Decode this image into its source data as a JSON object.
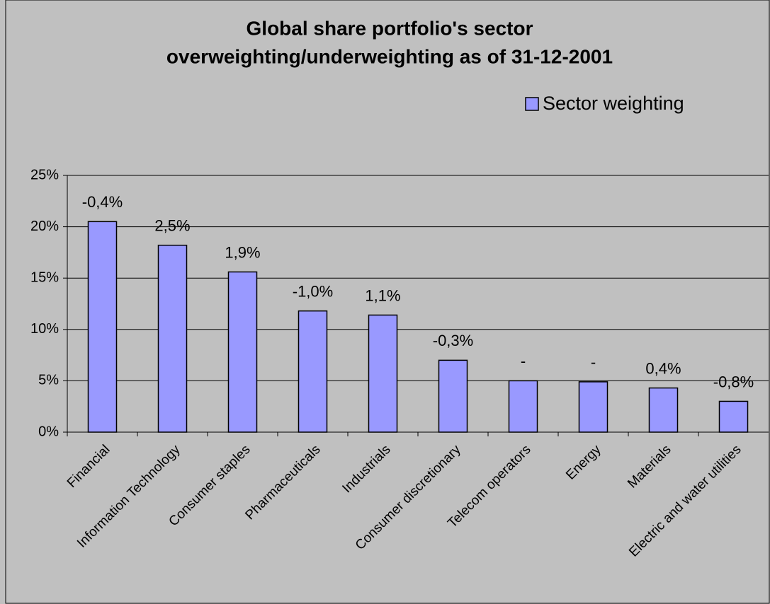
{
  "chart_data": {
    "type": "bar",
    "title": [
      "Global share portfolio's sector",
      "overweighting/underweighting as of 31-12-2001"
    ],
    "categories": [
      "Financial",
      "Information Technology",
      "Consumer staples",
      "Pharmaceuticals",
      "Industrials",
      "Consumer discretionary",
      "Telecom operators",
      "Energy",
      "Materials",
      "Electric and water utilities"
    ],
    "series": [
      {
        "name": "Sector weighting",
        "color": "#9999ff",
        "values": [
          20.5,
          18.2,
          15.6,
          11.8,
          11.4,
          7.0,
          5.0,
          4.9,
          4.3,
          3.0
        ]
      }
    ],
    "annotations": [
      "-0,4%",
      "2,5%",
      "1,9%",
      "-1,0%",
      "1,1%",
      "-0,3%",
      "-",
      "-",
      "0,4%",
      "-0,8%"
    ],
    "ylim": [
      0,
      25
    ],
    "yticks": [
      {
        "value": 0,
        "label": "0%"
      },
      {
        "value": 5,
        "label": "5%"
      },
      {
        "value": 10,
        "label": "10%"
      },
      {
        "value": 15,
        "label": "15%"
      },
      {
        "value": 20,
        "label": "20%"
      },
      {
        "value": 25,
        "label": "25%"
      }
    ],
    "grid": true,
    "legend": "top-right"
  }
}
